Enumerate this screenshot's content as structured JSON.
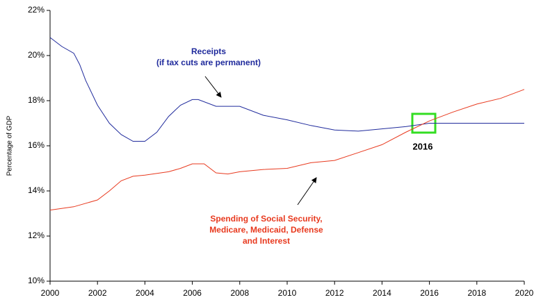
{
  "chart_data": {
    "type": "line",
    "y_axis_label": "Percentage of GDP",
    "xlim": [
      2000,
      2020
    ],
    "xticks": [
      2000,
      2002,
      2004,
      2006,
      2008,
      2010,
      2012,
      2014,
      2016,
      2018,
      2020
    ],
    "ylim": [
      10,
      22
    ],
    "yticks": [
      {
        "value": 10,
        "label": "10%"
      },
      {
        "value": 12,
        "label": "12%"
      },
      {
        "value": 14,
        "label": "14%"
      },
      {
        "value": 16,
        "label": "16%"
      },
      {
        "value": 18,
        "label": "18%"
      },
      {
        "value": 20,
        "label": "20%"
      },
      {
        "value": 22,
        "label": "22%"
      }
    ],
    "grid": false,
    "series": [
      {
        "name": "Receipts",
        "color": "#1f2a9c",
        "x": [
          2000,
          2000.5,
          2001,
          2001.25,
          2001.5,
          2002,
          2002.5,
          2003,
          2003.5,
          2004,
          2004.5,
          2005,
          2005.5,
          2006,
          2006.25,
          2007,
          2008,
          2009,
          2010,
          2011,
          2012,
          2013,
          2014,
          2015,
          2016,
          2018,
          2020
        ],
        "values": [
          20.8,
          20.4,
          20.1,
          19.6,
          18.9,
          17.8,
          17.0,
          16.5,
          16.2,
          16.2,
          16.6,
          17.3,
          17.8,
          18.05,
          18.05,
          17.75,
          17.75,
          17.35,
          17.15,
          16.9,
          16.7,
          16.65,
          16.75,
          16.85,
          17.0,
          17.0,
          17.0
        ]
      },
      {
        "name": "Spending",
        "color": "#e8391e",
        "x": [
          2000,
          2001,
          2002,
          2002.5,
          2003,
          2003.5,
          2004,
          2005,
          2005.5,
          2006,
          2006.5,
          2007,
          2007.5,
          2008,
          2009,
          2010,
          2011,
          2012,
          2013,
          2014,
          2015,
          2016,
          2017,
          2018,
          2019,
          2020
        ],
        "values": [
          13.15,
          13.3,
          13.6,
          14.0,
          14.45,
          14.65,
          14.7,
          14.85,
          15.0,
          15.2,
          15.2,
          14.8,
          14.75,
          14.85,
          14.95,
          15.0,
          15.25,
          15.35,
          15.7,
          16.05,
          16.6,
          17.1,
          17.5,
          17.85,
          18.1,
          18.5
        ]
      }
    ],
    "annotations": [
      {
        "lines": [
          "Receipts",
          "(if tax cuts are permanent)"
        ]
      },
      {
        "lines": [
          "Spending of Social Security,",
          "Medicare, Medicaid, Defense",
          "and Interest"
        ]
      },
      {
        "lines": [
          "2016"
        ]
      }
    ]
  }
}
